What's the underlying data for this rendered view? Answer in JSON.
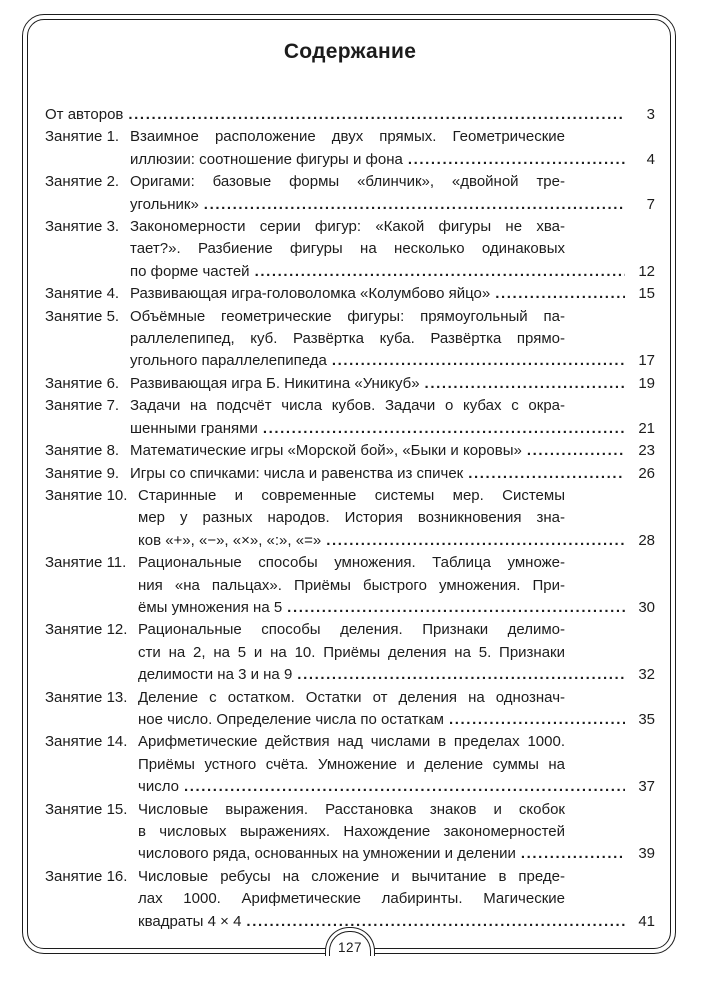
{
  "header": {
    "title": "Содержание"
  },
  "toc": {
    "entries": [
      {
        "label": "",
        "wrapped_lines": [],
        "final_line": "От авторов",
        "page": "3"
      },
      {
        "label": "Занятие 1.",
        "wrapped_lines": [
          "Взаимное расположение двух прямых. Геометрические"
        ],
        "final_line": "иллюзии: соотношение фигуры и фона",
        "page": "4"
      },
      {
        "label": "Занятие 2.",
        "wrapped_lines": [
          "Оригами: базовые формы «блинчик», «двойной тре-"
        ],
        "final_line": "угольник»",
        "page": "7"
      },
      {
        "label": "Занятие 3.",
        "wrapped_lines": [
          "Закономерности серии фигур: «Какой фигуры не хва-",
          "тает?». Разбиение фигуры на несколько одинаковых"
        ],
        "final_line": "по форме частей",
        "page": "12"
      },
      {
        "label": "Занятие 4.",
        "wrapped_lines": [],
        "final_line": "Развивающая игра-головоломка «Колумбово яйцо»",
        "page": "15"
      },
      {
        "label": "Занятие 5.",
        "wrapped_lines": [
          "Объёмные геометрические фигуры: прямоугольный па-",
          "раллелепипед, куб. Развёртка куба. Развёртка прямо-"
        ],
        "final_line": "угольного параллелепипеда",
        "page": "17"
      },
      {
        "label": "Занятие 6.",
        "wrapped_lines": [],
        "final_line": "Развивающая игра Б. Никитина «Уникуб»",
        "page": "19"
      },
      {
        "label": "Занятие 7.",
        "wrapped_lines": [
          "Задачи на подсчёт числа кубов. Задачи о кубах с окра-"
        ],
        "final_line": "шенными гранями",
        "page": "21"
      },
      {
        "label": "Занятие 8.",
        "wrapped_lines": [],
        "final_line": "Математические игры «Морской бой», «Быки и коровы»",
        "page": "23"
      },
      {
        "label": "Занятие 9.",
        "wrapped_lines": [],
        "final_line": "Игры со спичками: числа и равенства из спичек",
        "page": "26"
      },
      {
        "label": "Занятие 10.",
        "wrapped_lines": [
          "Старинные и современные системы мер. Системы",
          "мер у разных народов. История возникновения зна-"
        ],
        "final_line": "ков «+», «−», «×», «:», «=»",
        "page": "28"
      },
      {
        "label": "Занятие 11.",
        "wrapped_lines": [
          "Рациональные способы умножения. Таблица умноже-",
          "ния «на пальцах». Приёмы быстрого умножения. При-"
        ],
        "final_line": "ёмы умножения на 5",
        "page": "30"
      },
      {
        "label": "Занятие 12.",
        "wrapped_lines": [
          "Рациональные способы деления. Признаки делимо-",
          "сти на 2, на 5 и на 10. Приёмы деления на 5. Признаки"
        ],
        "final_line": "делимости на 3 и на 9",
        "page": "32"
      },
      {
        "label": "Занятие 13.",
        "wrapped_lines": [
          "Деление с остатком. Остатки от деления на однознач-"
        ],
        "final_line": "ное число. Определение числа по остаткам",
        "page": "35"
      },
      {
        "label": "Занятие 14.",
        "wrapped_lines": [
          "Арифметические действия над числами в пределах 1000.",
          "Приёмы устного счёта. Умножение и деление суммы на"
        ],
        "final_line": "число",
        "page": "37"
      },
      {
        "label": "Занятие 15.",
        "wrapped_lines": [
          "Числовые выражения. Расстановка знаков и скобок",
          "в числовых выражениях. Нахождение закономерностей"
        ],
        "final_line": "числового ряда, основанных на умножении и делении",
        "page": "39"
      },
      {
        "label": "Занятие 16.",
        "wrapped_lines": [
          "Числовые ребусы на сложение и вычитание в преде-",
          "лах 1000. Арифметические лабиринты. Магические"
        ],
        "final_line": "квадраты 4 × 4",
        "page": "41"
      }
    ]
  },
  "footer": {
    "page_number": "127"
  },
  "colors": {
    "ink": "#1c1c1c",
    "paper": "#ffffff"
  }
}
